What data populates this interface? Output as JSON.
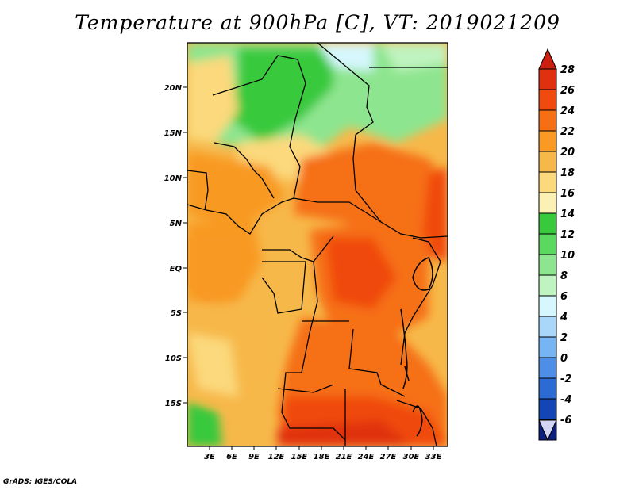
{
  "title": "Temperature at 900hPa [C], VT: 2019021209",
  "credit": "GrADS: IGES/COLA",
  "map": {
    "lat_labels": [
      "20N",
      "15N",
      "10N",
      "5N",
      "EQ",
      "5S",
      "10S",
      "15S"
    ],
    "lon_labels": [
      "3E",
      "6E",
      "9E",
      "12E",
      "15E",
      "18E",
      "21E",
      "24E",
      "27E",
      "30E",
      "33E"
    ]
  },
  "colorbar": {
    "labels": [
      "28",
      "26",
      "24",
      "22",
      "20",
      "18",
      "16",
      "14",
      "12",
      "10",
      "8",
      "6",
      "4",
      "2",
      "0",
      "-2",
      "-4",
      "-6"
    ],
    "colors": [
      "#e03010",
      "#f04a10",
      "#f66f14",
      "#f89a24",
      "#f7b84a",
      "#fbd97c",
      "#fbf1b4",
      "#39c93d",
      "#5ad860",
      "#8ee58f",
      "#bff3bf",
      "#d6f7fd",
      "#a9d7fa",
      "#77b4f3",
      "#4f8ee6",
      "#2c6bd4",
      "#1445b5",
      "#0a1f80"
    ],
    "over_color": "#cc1f10",
    "under_color": "#d2d6f2"
  }
}
